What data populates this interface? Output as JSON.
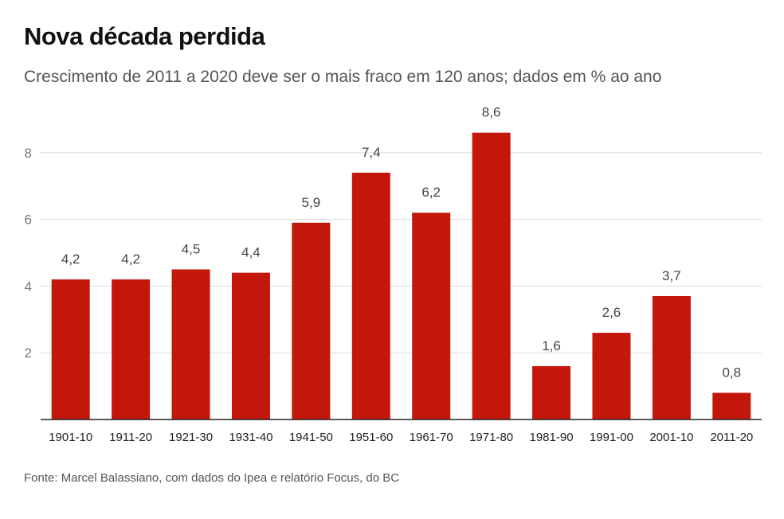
{
  "chart_data": {
    "type": "bar",
    "title": "Nova década perdida",
    "subtitle": "Crescimento de 2011 a 2020 deve ser o mais fraco em 120 anos; dados em % ao ano",
    "source": "Fonte: Marcel Balassiano, com dados do Ipea e relatório Focus, do BC",
    "categories": [
      "1901-10",
      "1911-20",
      "1921-30",
      "1931-40",
      "1941-50",
      "1951-60",
      "1961-70",
      "1971-80",
      "1981-90",
      "1991-00",
      "2001-10",
      "2011-20"
    ],
    "values": [
      4.2,
      4.2,
      4.5,
      4.4,
      5.9,
      7.4,
      6.2,
      8.6,
      1.6,
      2.6,
      3.7,
      0.8
    ],
    "value_labels": [
      "4,2",
      "4,2",
      "4,5",
      "4,4",
      "5,9",
      "7,4",
      "6,2",
      "8,6",
      "1,6",
      "2,6",
      "3,7",
      "0,8"
    ],
    "yticks": [
      2,
      4,
      6,
      8
    ],
    "ylim": [
      0,
      8.6
    ],
    "xlabel": "",
    "ylabel": "",
    "grid": true,
    "bar_color": "#c4170c"
  }
}
